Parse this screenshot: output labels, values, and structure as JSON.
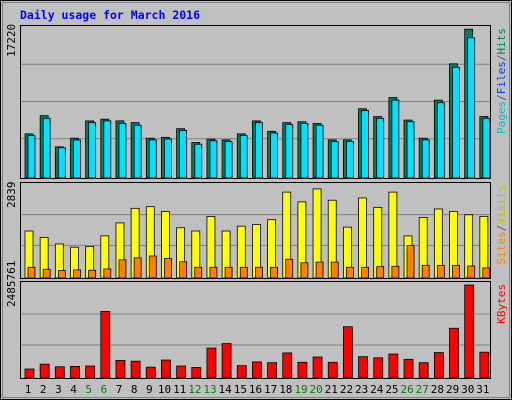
{
  "chart_data": {
    "type": "bar",
    "title": "Daily usage for March 2016",
    "categories": [
      "1",
      "2",
      "3",
      "4",
      "5",
      "6",
      "7",
      "8",
      "9",
      "10",
      "11",
      "12",
      "13",
      "14",
      "15",
      "16",
      "17",
      "18",
      "19",
      "20",
      "21",
      "22",
      "23",
      "24",
      "25",
      "26",
      "27",
      "28",
      "29",
      "30",
      "31"
    ],
    "weekend_days": [
      "5",
      "6",
      "12",
      "13",
      "19",
      "20",
      "26",
      "27"
    ],
    "panels": [
      {
        "id": "hits-panel",
        "max_label": "17220",
        "ymax": 17220,
        "legend": [
          {
            "name": "Pages",
            "color": "#00c0d0"
          },
          {
            "name": "/",
            "color": "#505090"
          },
          {
            "name": "Files",
            "color": "#0040ff"
          },
          {
            "name": "/",
            "color": "#505090"
          },
          {
            "name": "Hits",
            "color": "#008060"
          }
        ],
        "series": [
          {
            "name": "Hits",
            "color": "#008060",
            "values": [
              5100,
              7200,
              3600,
              4600,
              6600,
              6800,
              6600,
              6400,
              4600,
              4700,
              5700,
              4100,
              4500,
              4400,
              5100,
              6600,
              5400,
              6400,
              6500,
              6300,
              4400,
              4400,
              8000,
              7100,
              9300,
              6700,
              4600,
              9000,
              13200,
              17200,
              7100
            ]
          },
          {
            "name": "Files",
            "color": "#00e0ff",
            "values": [
              4900,
              6900,
              3500,
              4400,
              6400,
              6600,
              6300,
              6100,
              4400,
              4500,
              5500,
              3900,
              4300,
              4200,
              4900,
              6400,
              5200,
              6200,
              6300,
              6100,
              4200,
              4200,
              7800,
              6900,
              9000,
              6500,
              4400,
              8700,
              12800,
              16200,
              6900
            ]
          }
        ]
      },
      {
        "id": "visits-panel",
        "max_label": "2839",
        "ymax": 2839,
        "legend": [
          {
            "name": "Sites",
            "color": "#ff8000"
          },
          {
            "name": "/",
            "color": "#505090"
          },
          {
            "name": "Visits",
            "color": "#c0c000"
          }
        ],
        "series": [
          {
            "name": "Visits",
            "color": "#ffff00",
            "values": [
              1450,
              1250,
              1050,
              950,
              970,
              1300,
              1700,
              2150,
              2200,
              2050,
              1550,
              1450,
              1900,
              1450,
              1600,
              1650,
              1800,
              2650,
              2350,
              2750,
              2400,
              1570,
              2470,
              2180,
              2650,
              1300,
              1870,
              2130,
              2050,
              1950,
              1900
            ]
          },
          {
            "name": "Sites",
            "color": "#ff8000",
            "values": [
              330,
              270,
              230,
              250,
              240,
              280,
              560,
              620,
              680,
              600,
              500,
              330,
              330,
              330,
              330,
              330,
              330,
              580,
              470,
              490,
              490,
              330,
              330,
              350,
              360,
              1000,
              390,
              390,
              390,
              370,
              310
            ]
          }
        ]
      },
      {
        "id": "kbytes-panel",
        "max_label": "2485761",
        "ymax": 2485761,
        "legend": [
          {
            "name": "KBytes",
            "color": "#ff0000"
          }
        ],
        "series": [
          {
            "name": "KBytes",
            "color": "#ff0000",
            "values": [
              240000,
              370000,
              300000,
              310000,
              320000,
              1780000,
              470000,
              450000,
              290000,
              480000,
              320000,
              280000,
              800000,
              920000,
              330000,
              430000,
              410000,
              670000,
              420000,
              560000,
              420000,
              1370000,
              570000,
              540000,
              640000,
              500000,
              410000,
              680000,
              1330000,
              2485761,
              690000
            ]
          }
        ]
      }
    ]
  }
}
